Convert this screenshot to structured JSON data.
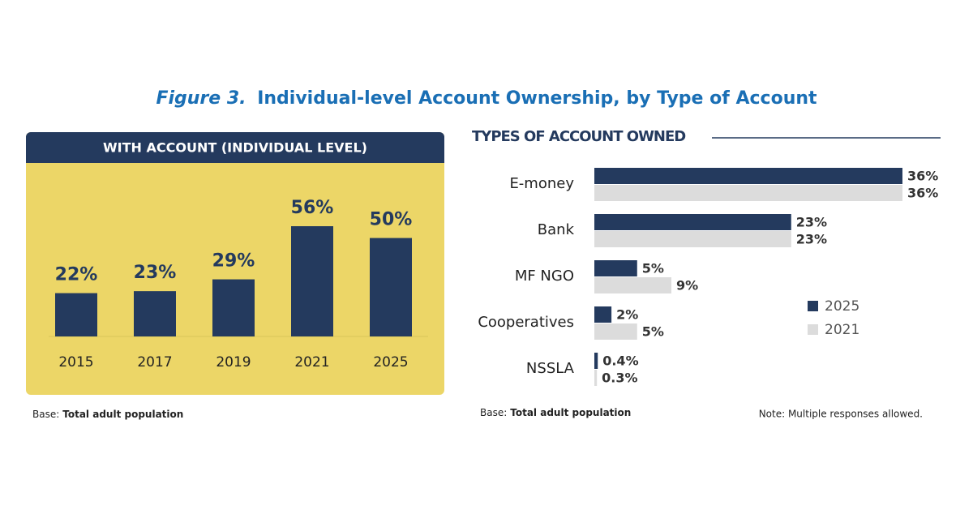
{
  "figure": {
    "label": "Figure 3.",
    "title": "Individual-level Account Ownership, by Type of Account"
  },
  "chart_data": [
    {
      "type": "bar",
      "title": "WITH ACCOUNT (INDIVIDUAL LEVEL)",
      "categories": [
        "2015",
        "2017",
        "2019",
        "2021",
        "2025"
      ],
      "values": [
        22,
        23,
        29,
        56,
        50
      ],
      "value_labels": [
        "22%",
        "23%",
        "29%",
        "56%",
        "50%"
      ],
      "color": "#243a5e",
      "base_label": "Base:",
      "base_text": "Total adult population"
    },
    {
      "type": "barh",
      "title": "TYPES OF ACCOUNT OWNED",
      "categories": [
        "E-money",
        "Bank",
        "MF NGO",
        "Cooperatives",
        "NSSLA"
      ],
      "series": [
        {
          "name": "2025",
          "color": "#243a5e",
          "values": [
            36,
            23,
            5,
            2,
            0.4
          ],
          "value_labels": [
            "36%",
            "23%",
            "5%",
            "2%",
            "0.4%"
          ]
        },
        {
          "name": "2021",
          "color": "#dcdcdc",
          "values": [
            36,
            23,
            9,
            5,
            0.3
          ],
          "value_labels": [
            "36%",
            "23%",
            "9%",
            "5%",
            "0.3%"
          ]
        }
      ],
      "legend": "right",
      "base_label": "Base:",
      "base_text": "Total adult population",
      "note": "Note: Multiple responses allowed."
    }
  ]
}
